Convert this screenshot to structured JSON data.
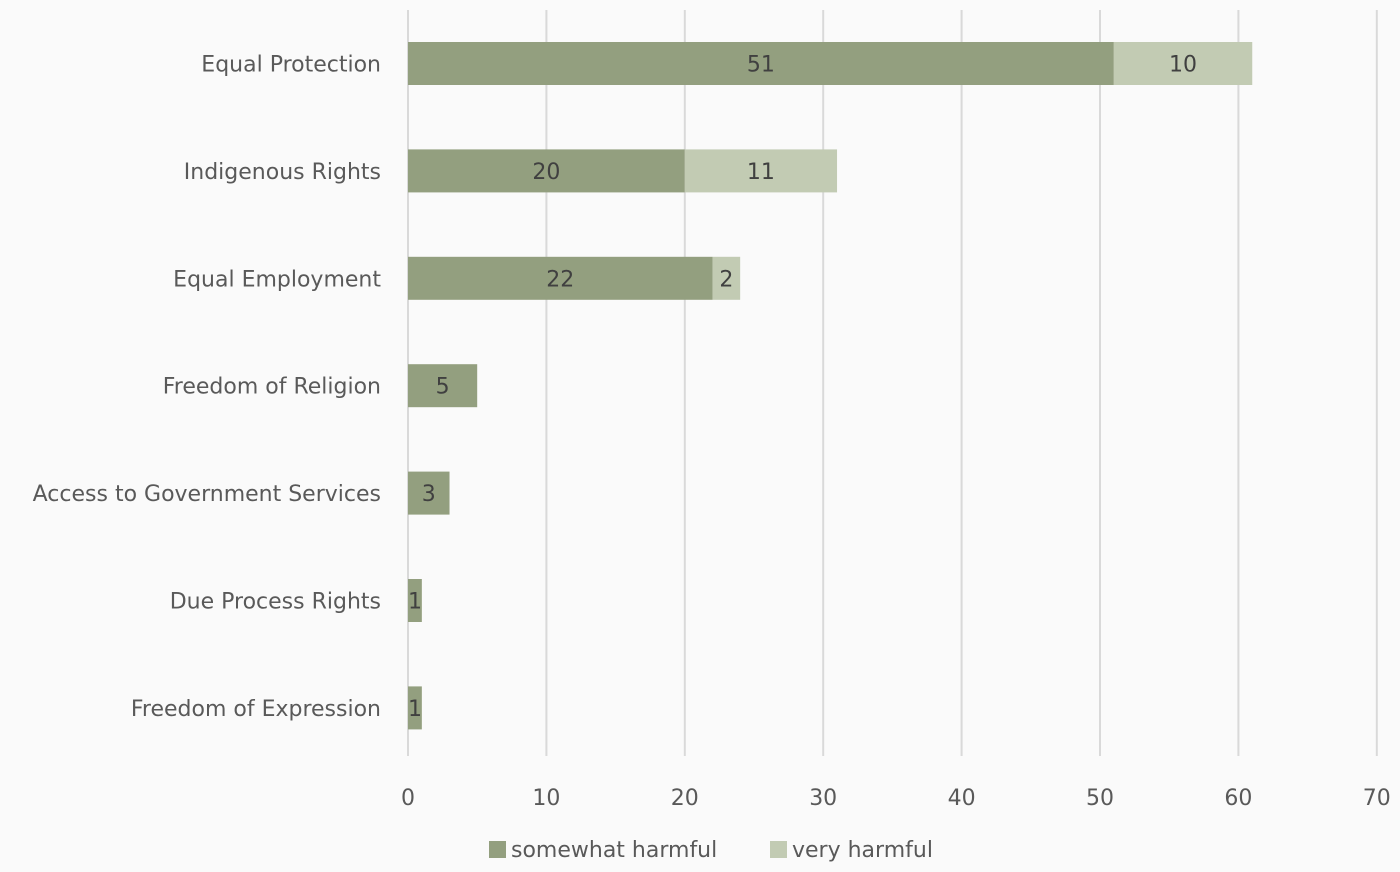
{
  "chart_data": {
    "type": "bar",
    "orientation": "horizontal",
    "stacked": true,
    "categories": [
      "Equal Protection",
      "Indigenous Rights",
      "Equal Employment",
      "Freedom of Religion",
      "Access to Government Services",
      "Due Process Rights",
      "Freedom of Expression"
    ],
    "series": [
      {
        "name": "somewhat harmful",
        "color": "#939f7f",
        "values": [
          51,
          20,
          22,
          5,
          3,
          1,
          1
        ]
      },
      {
        "name": "very harmful",
        "color": "#c2cbb3",
        "values": [
          10,
          11,
          2,
          0,
          0,
          0,
          0
        ]
      }
    ],
    "xlim": [
      0,
      70
    ],
    "xticks": [
      0,
      10,
      20,
      30,
      40,
      50,
      60,
      70
    ],
    "grid": "vertical",
    "legend_position": "bottom",
    "data_labels": true
  }
}
